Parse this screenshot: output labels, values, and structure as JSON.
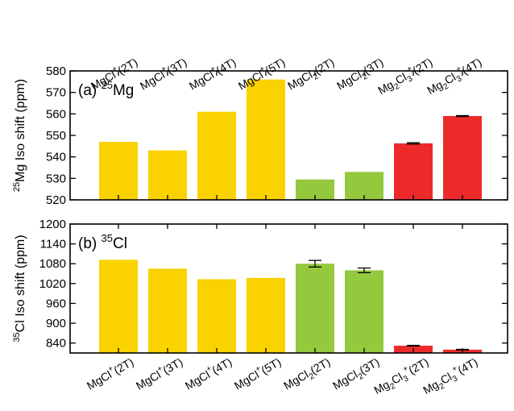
{
  "chart_data": [
    {
      "type": "bar",
      "panel_label": "(a)",
      "panel_nucleus_mass": "25",
      "panel_nucleus_symbol": "Mg",
      "ylabel_mass": "25",
      "ylabel_text": "Mg Iso shift (ppm)",
      "ylim": [
        520,
        580
      ],
      "yticks": [
        "520",
        "530",
        "540",
        "550",
        "560",
        "570",
        "580"
      ],
      "category_labels_position": "top",
      "categories": [
        {
          "base": "MgCl",
          "sup": "+",
          "sub": "",
          "sup2": "",
          "suffix": "(2T)"
        },
        {
          "base": "MgCl",
          "sup": "+",
          "sub": "",
          "sup2": "",
          "suffix": "(3T)"
        },
        {
          "base": "MgCl",
          "sup": "+",
          "sub": "",
          "sup2": "",
          "suffix": "(4T)"
        },
        {
          "base": "MgCl",
          "sup": "+",
          "sub": "",
          "sup2": "",
          "suffix": "(5T)"
        },
        {
          "base": "MgCl",
          "sup": "",
          "sub": "2",
          "sup2": "",
          "suffix": "(2T)"
        },
        {
          "base": "MgCl",
          "sup": "",
          "sub": "2",
          "sup2": "",
          "suffix": "(3T)"
        },
        {
          "base": "Mg",
          "sup": "",
          "sub": "2",
          "mid": "Cl",
          "sub2": "3",
          "sup2": "+",
          "suffix": "(2T)"
        },
        {
          "base": "Mg",
          "sup": "",
          "sub": "2",
          "mid": "Cl",
          "sub2": "3",
          "sup2": "+",
          "suffix": "(4T)"
        }
      ],
      "values": [
        547,
        543,
        561,
        576,
        529.5,
        533,
        546.3,
        559
      ],
      "errors": [
        0,
        0,
        0,
        0,
        0,
        0,
        0.3,
        0.2
      ],
      "colors": [
        "#f9d200",
        "#f9d200",
        "#f9d200",
        "#f9d200",
        "#94c83d",
        "#94c83d",
        "#ec2a2a",
        "#ec2a2a"
      ],
      "grid": false
    },
    {
      "type": "bar",
      "panel_label": "(b)",
      "panel_nucleus_mass": "35",
      "panel_nucleus_symbol": "Cl",
      "ylabel_mass": "35",
      "ylabel_text": "Cl Iso shift (ppm)",
      "ylim": [
        810,
        1200
      ],
      "yticks": [
        "840",
        "900",
        "960",
        "1020",
        "1080",
        "1140",
        "1200"
      ],
      "category_labels_position": "bottom",
      "categories": [
        {
          "base": "MgCl",
          "sup": "+",
          "sub": "",
          "sup2": "",
          "suffix": "(2T)"
        },
        {
          "base": "MgCl",
          "sup": "+",
          "sub": "",
          "sup2": "",
          "suffix": "(3T)"
        },
        {
          "base": "MgCl",
          "sup": "+",
          "sub": "",
          "sup2": "",
          "suffix": "(4T)"
        },
        {
          "base": "MgCl",
          "sup": "+",
          "sub": "",
          "sup2": "",
          "suffix": "(5T)"
        },
        {
          "base": "MgCl",
          "sup": "",
          "sub": "2",
          "sup2": "",
          "suffix": "(2T)"
        },
        {
          "base": "MgCl",
          "sup": "",
          "sub": "2",
          "sup2": "",
          "suffix": "(3T)"
        },
        {
          "base": "Mg",
          "sup": "",
          "sub": "2",
          "mid": "Cl",
          "sub2": "3",
          "sup2": "+",
          "suffix": "(2T)"
        },
        {
          "base": "Mg",
          "sup": "",
          "sub": "2",
          "mid": "Cl",
          "sub2": "3",
          "sup2": "+",
          "suffix": "(4T)"
        }
      ],
      "values": [
        1092,
        1065,
        1033,
        1037,
        1080,
        1060,
        832,
        820
      ],
      "errors": [
        0,
        0,
        0,
        0,
        10,
        7,
        1,
        1
      ],
      "colors": [
        "#f9d200",
        "#f9d200",
        "#f9d200",
        "#f9d200",
        "#94c83d",
        "#94c83d",
        "#ec2a2a",
        "#ec2a2a"
      ],
      "grid": false
    }
  ]
}
